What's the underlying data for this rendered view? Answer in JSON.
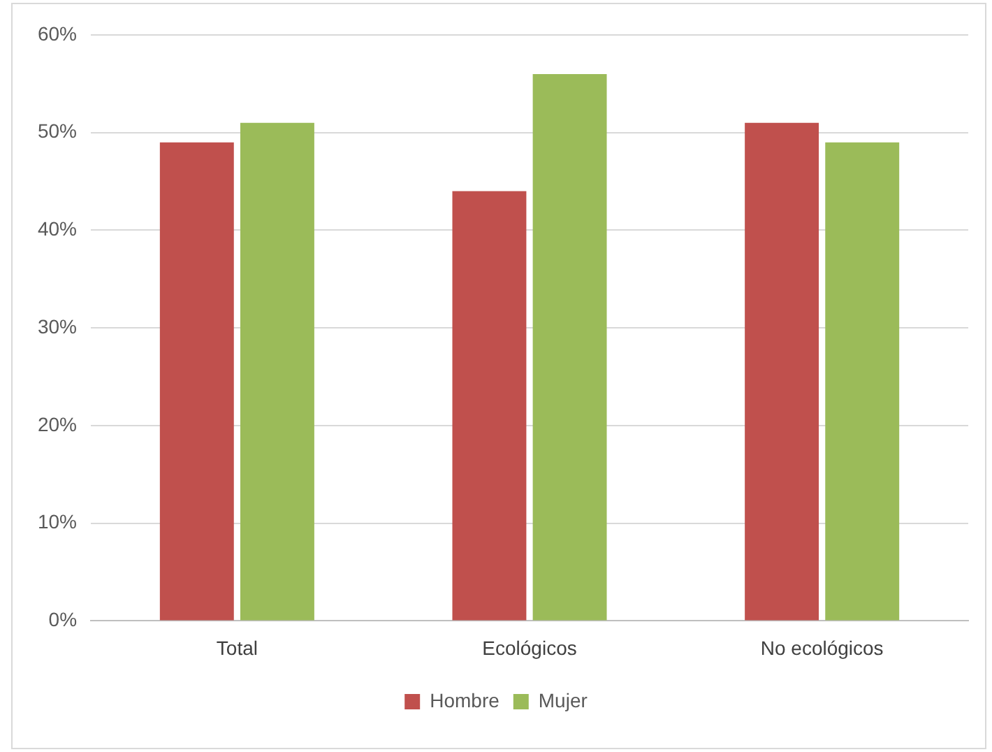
{
  "chart_data": {
    "type": "bar",
    "categories": [
      "Total",
      "Ecológicos",
      "No ecológicos"
    ],
    "series": [
      {
        "name": "Hombre",
        "color": "#c0504d",
        "values": [
          49,
          44,
          51
        ]
      },
      {
        "name": "Mujer",
        "color": "#9bbb59",
        "values": [
          51,
          56,
          49
        ]
      }
    ],
    "ylim": [
      0,
      60
    ],
    "yticks": [
      {
        "value": 0,
        "label": "0%"
      },
      {
        "value": 10,
        "label": "10%"
      },
      {
        "value": 20,
        "label": "20%"
      },
      {
        "value": 30,
        "label": "30%"
      },
      {
        "value": 40,
        "label": "40%"
      },
      {
        "value": 50,
        "label": "50%"
      },
      {
        "value": 60,
        "label": "60%"
      }
    ],
    "grid": "y",
    "legend": "bottom"
  }
}
